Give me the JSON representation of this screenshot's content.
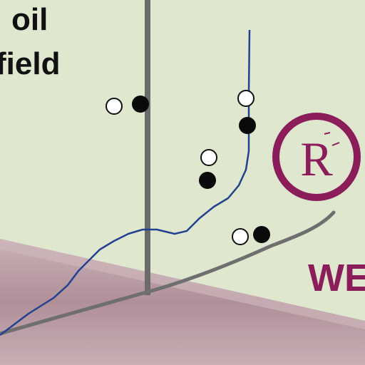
{
  "labels": {
    "line1": "oil",
    "line2": "field",
    "mark": "R",
    "web": "WE"
  },
  "colors": {
    "background": "#dfe7cf",
    "ground": "#b59aa2",
    "pipe": "#777777",
    "well": "#6b6b6b",
    "flow_line": "#22418f",
    "mark": "#8a1d5a",
    "text": "#111111"
  },
  "icons": [
    "open-circle-icon",
    "filled-circle-icon",
    "registered-mark-icon"
  ]
}
